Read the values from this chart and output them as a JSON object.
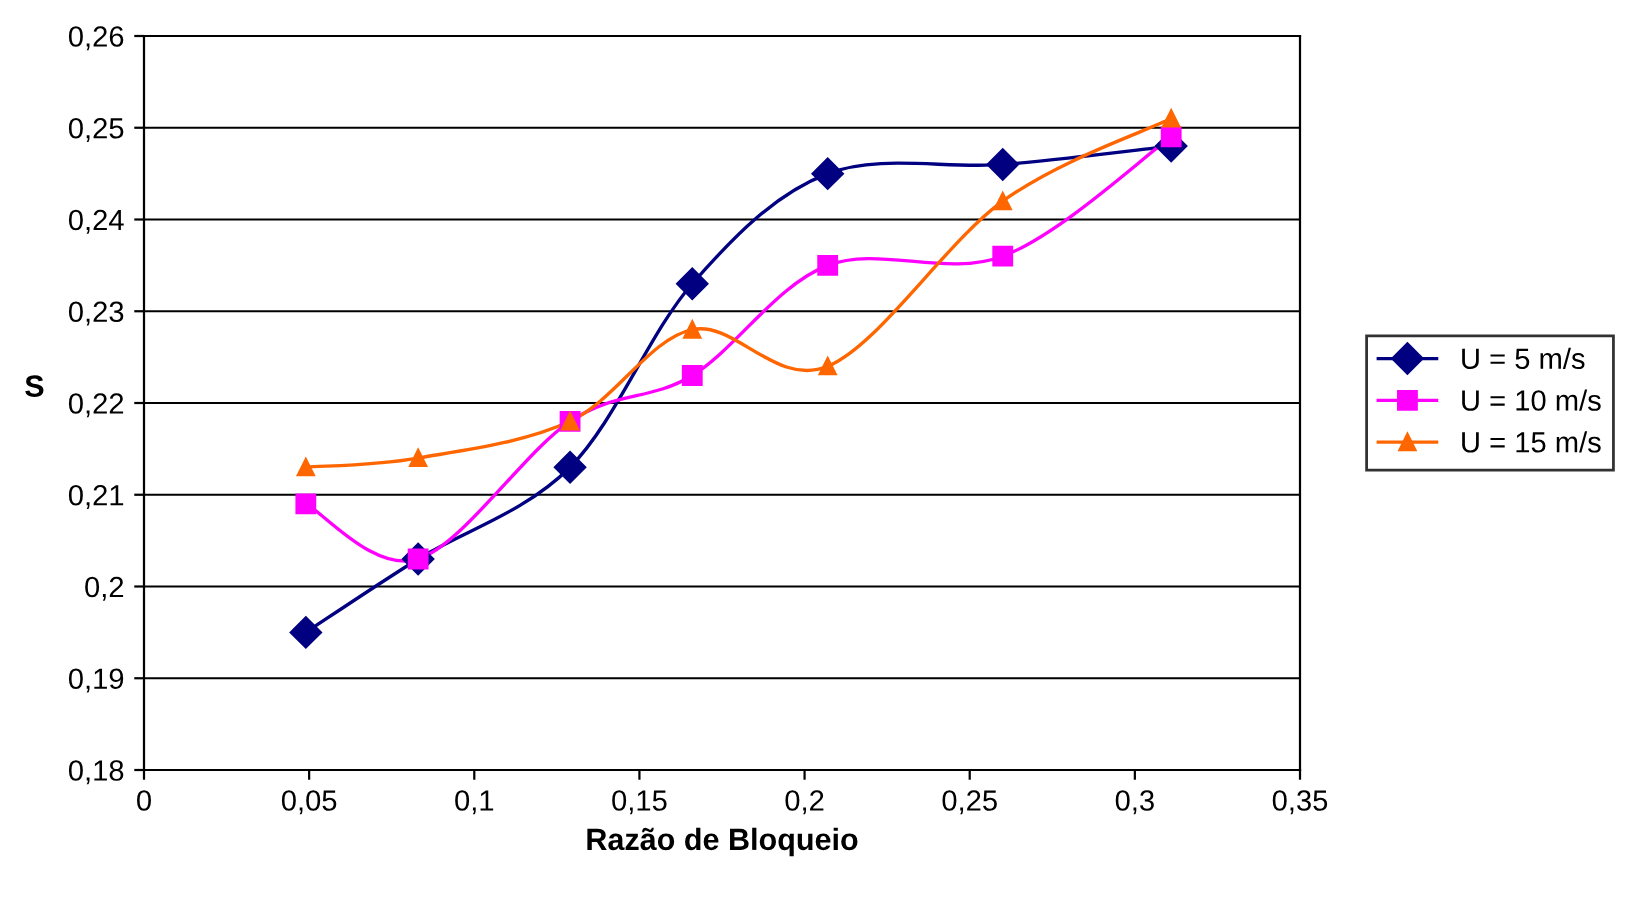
{
  "chart_data": {
    "type": "line",
    "xlabel": "Razão de Bloqueio",
    "ylabel": "S",
    "x": [
      0.049,
      0.083,
      0.129,
      0.166,
      0.207,
      0.26,
      0.311
    ],
    "series": [
      {
        "name": "U = 5 m/s",
        "color": "#000080",
        "marker": "diamond",
        "values": [
          0.195,
          0.203,
          0.213,
          0.233,
          0.245,
          0.246,
          0.248
        ]
      },
      {
        "name": "U = 10 m/s",
        "color": "#ff00ff",
        "marker": "square",
        "values": [
          0.209,
          0.203,
          0.218,
          0.223,
          0.235,
          0.236,
          0.249
        ]
      },
      {
        "name": "U = 15 m/s",
        "color": "#ff6600",
        "marker": "triangle",
        "values": [
          0.213,
          0.214,
          0.218,
          0.228,
          0.224,
          0.242,
          0.251
        ]
      }
    ],
    "xlim": [
      0,
      0.35
    ],
    "xticks": [
      {
        "value": 0,
        "label": "0"
      },
      {
        "value": 0.05,
        "label": "0,05"
      },
      {
        "value": 0.1,
        "label": "0,1"
      },
      {
        "value": 0.15,
        "label": "0,15"
      },
      {
        "value": 0.2,
        "label": "0,2"
      },
      {
        "value": 0.25,
        "label": "0,25"
      },
      {
        "value": 0.3,
        "label": "0,3"
      },
      {
        "value": 0.35,
        "label": "0,35"
      }
    ],
    "ylim": [
      0.18,
      0.26
    ],
    "yticks": [
      {
        "value": 0.18,
        "label": "0,18"
      },
      {
        "value": 0.19,
        "label": "0,19"
      },
      {
        "value": 0.2,
        "label": "0,2"
      },
      {
        "value": 0.21,
        "label": "0,21"
      },
      {
        "value": 0.22,
        "label": "0,22"
      },
      {
        "value": 0.23,
        "label": "0,23"
      },
      {
        "value": 0.24,
        "label": "0,24"
      },
      {
        "value": 0.25,
        "label": "0,25"
      },
      {
        "value": 0.26,
        "label": "0,26"
      }
    ],
    "grid": "y",
    "legend": "right",
    "line_style": "solid"
  }
}
